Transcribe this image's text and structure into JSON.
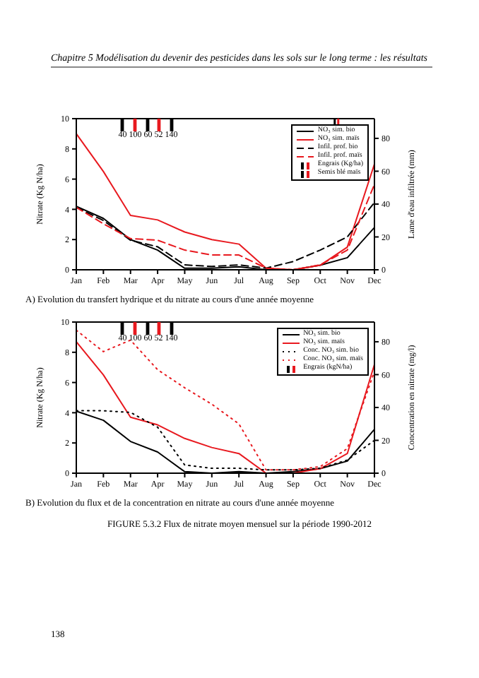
{
  "chart_data": [
    {
      "type": "line",
      "subtitle": "Chapitre 5 Modélisation du devenir des pesticides dans les sols sur le long terme : les résultats",
      "title": "A) Evolution du transfert hydrique et du nitrate au cours d'une année moyenne",
      "ylabel": "Nitrate (Kg N/ha)",
      "y2label": "Lame d'eau infiltrée (mm)",
      "categories": [
        "Jan",
        "Feb",
        "Mar",
        "Apr",
        "May",
        "Jun",
        "Jul",
        "Aug",
        "Sep",
        "Oct",
        "Nov",
        "Dec"
      ],
      "ylim": [
        0,
        10
      ],
      "yticks": [
        0,
        2,
        4,
        6,
        8,
        10
      ],
      "y2lim": [
        0,
        92
      ],
      "y2ticks": [
        0,
        20,
        40,
        60,
        80
      ],
      "marker": "none",
      "grid": false,
      "legend": "top right",
      "series": [
        {
          "name": "NO₃ sim. bio",
          "color": "#000000",
          "line_style": "solid",
          "values": [
            4.2,
            3.4,
            2.0,
            1.3,
            0.1,
            0.1,
            0.2,
            0.0,
            0.0,
            0.3,
            0.8,
            2.8
          ]
        },
        {
          "name": "NO₃ sim. maïs",
          "color": "#e8191f",
          "line_style": "solid",
          "values": [
            9.0,
            6.5,
            3.6,
            3.3,
            2.5,
            2.0,
            1.7,
            0.1,
            0.0,
            0.3,
            1.5,
            7.0
          ]
        },
        {
          "name": "Infil. prof. bio",
          "color": "#000000",
          "line_style": "dashed",
          "axis": "y2",
          "values": [
            38,
            30,
            18,
            14,
            3,
            2,
            3,
            1,
            5,
            12,
            20,
            41
          ]
        },
        {
          "name": "Infil. prof. maïs",
          "color": "#e8191f",
          "line_style": "dashed",
          "axis": "y2",
          "values": [
            38,
            28,
            19,
            18,
            12,
            9,
            9,
            1,
            0,
            3,
            12,
            52
          ]
        }
      ],
      "annotations": [
        "40 100 60 52 140",
        "Engrais (Kg/ha)",
        "Semis blé maïs"
      ]
    },
    {
      "type": "line",
      "title": "B) Evolution du flux et de la concentration en nitrate au cours d'une année moyenne",
      "ylabel": "Nitrate (Kg N/ha)",
      "y2label": "Concentration en nitrate (mg/l)",
      "categories": [
        "Jan",
        "Feb",
        "Mar",
        "Apr",
        "May",
        "Jun",
        "Jul",
        "Aug",
        "Sep",
        "Oct",
        "Nov",
        "Dec"
      ],
      "ylim": [
        0,
        10
      ],
      "yticks": [
        0,
        2,
        4,
        6,
        8,
        10
      ],
      "y2lim": [
        0,
        92
      ],
      "y2ticks": [
        0,
        20,
        40,
        60,
        80
      ],
      "marker": "none",
      "grid": false,
      "legend": "top right",
      "series": [
        {
          "name": "NO₃ sim. bio",
          "color": "#000000",
          "line_style": "solid",
          "values": [
            4.1,
            3.5,
            2.1,
            1.4,
            0.1,
            0.0,
            0.1,
            0.0,
            0.1,
            0.3,
            0.8,
            2.9
          ]
        },
        {
          "name": "NO₃ sim. maïs",
          "color": "#e8191f",
          "line_style": "solid",
          "values": [
            8.7,
            6.5,
            3.7,
            3.2,
            2.3,
            1.7,
            1.3,
            0.0,
            0.0,
            0.3,
            1.3,
            7.2
          ]
        },
        {
          "name": "Conc. NO₃ sim. bio",
          "color": "#000000",
          "line_style": "dotted",
          "axis": "y2",
          "values": [
            38,
            38,
            37,
            28,
            5,
            3,
            3,
            2,
            2,
            3,
            8,
            20
          ]
        },
        {
          "name": "Conc. NO₃ sim. maïs",
          "color": "#e8191f",
          "line_style": "dotted",
          "axis": "y2",
          "values": [
            87,
            74,
            81,
            63,
            52,
            42,
            30,
            2,
            2,
            4,
            15,
            62
          ]
        }
      ],
      "annotations": [
        "40 100 60 52 140",
        "Engrais (kgN/ha)"
      ]
    },
    {
      "type": "other",
      "title": "FIGURE 5.3.2 Flux de nitrate moyen mensuel sur la période 1990-2012",
      "annotations": [
        "138"
      ]
    }
  ]
}
